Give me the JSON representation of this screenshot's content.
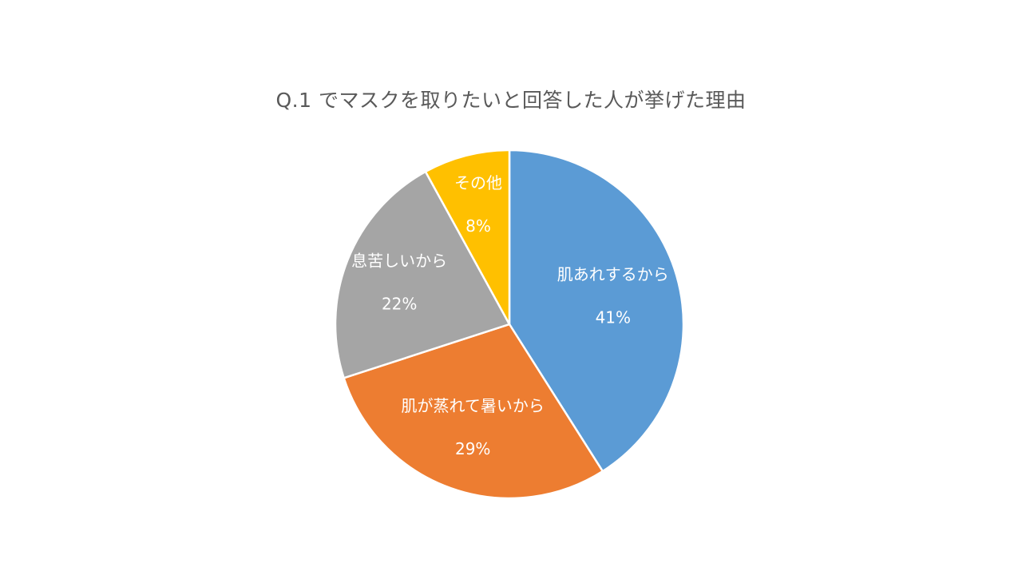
{
  "chart_data": {
    "type": "pie",
    "title": "Q.1 でマスクを取りたいと回答した人が挙げた理由",
    "categories": [
      "肌あれするから",
      "肌が蒸れて暑いから",
      "息苦しいから",
      "その他"
    ],
    "values": [
      41,
      29,
      22,
      8
    ],
    "value_labels": [
      "41%",
      "29%",
      "22%",
      "8%"
    ],
    "colors": [
      "#5B9BD5",
      "#ED7D31",
      "#A5A5A5",
      "#FFC000"
    ],
    "start": "12 o'clock",
    "direction": "clockwise",
    "legend": "none",
    "data_labels": "inside, category name and percentage"
  }
}
